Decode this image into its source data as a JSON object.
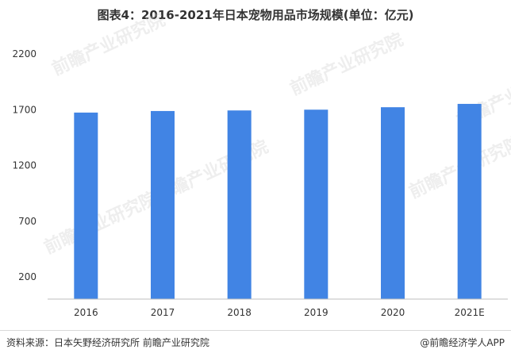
{
  "title": "图表4：2016-2021年日本宠物用品市场规模(单位：亿元)",
  "footer": {
    "source": "资料来源：日本矢野经济研究所 前瞻产业研究院",
    "credit": "@前瞻经济学人APP"
  },
  "watermark": "前瞻产业研究院",
  "chart_data": {
    "type": "bar",
    "title": "图表4：2016-2021年日本宠物用品市场规模(单位：亿元)",
    "categories": [
      "2016",
      "2017",
      "2018",
      "2019",
      "2020",
      "2021E"
    ],
    "values": [
      1674,
      1688,
      1693,
      1700,
      1722,
      1752
    ],
    "yticks": [
      200,
      700,
      1200,
      1700,
      2200
    ],
    "ylim": [
      0,
      2200
    ],
    "xlabel": "",
    "ylabel": "",
    "grid": false,
    "colors": {
      "bar": "#4184e4",
      "axis": "#bfbfbf",
      "text": "#333333"
    }
  }
}
